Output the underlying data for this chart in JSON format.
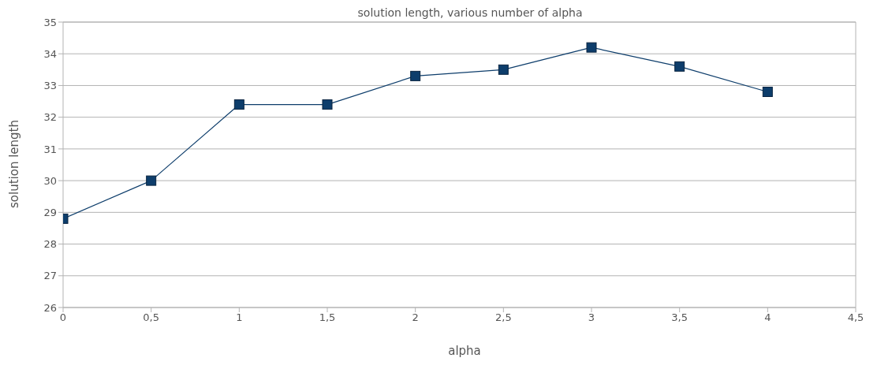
{
  "chart_data": {
    "type": "line",
    "title": "solution length, various number of alpha",
    "xlabel": "alpha",
    "ylabel": "solution length",
    "x": [
      0,
      0.5,
      1,
      1.5,
      2,
      2.5,
      3,
      3.5,
      4
    ],
    "series": [
      {
        "color": "#0d3d6b",
        "values": [
          28.8,
          30.0,
          32.4,
          32.4,
          33.3,
          33.5,
          34.2,
          33.6,
          32.8
        ]
      }
    ],
    "xlim": [
      0,
      4.5
    ],
    "xticks": [
      0,
      {
        "value": 0.5,
        "label": "0,5"
      },
      1,
      {
        "value": 1.5,
        "label": "1,5"
      },
      2,
      {
        "value": 2.5,
        "label": "2,5"
      },
      3,
      {
        "value": 3.5,
        "label": "3,5"
      },
      4,
      {
        "value": 4.5,
        "label": "4,5"
      }
    ],
    "ylim": [
      26,
      35
    ],
    "yticks": [
      26,
      27,
      28,
      29,
      30,
      31,
      32,
      33,
      34,
      35
    ],
    "grid": "y",
    "marker": "square",
    "line_style": "solid",
    "legend": false
  }
}
